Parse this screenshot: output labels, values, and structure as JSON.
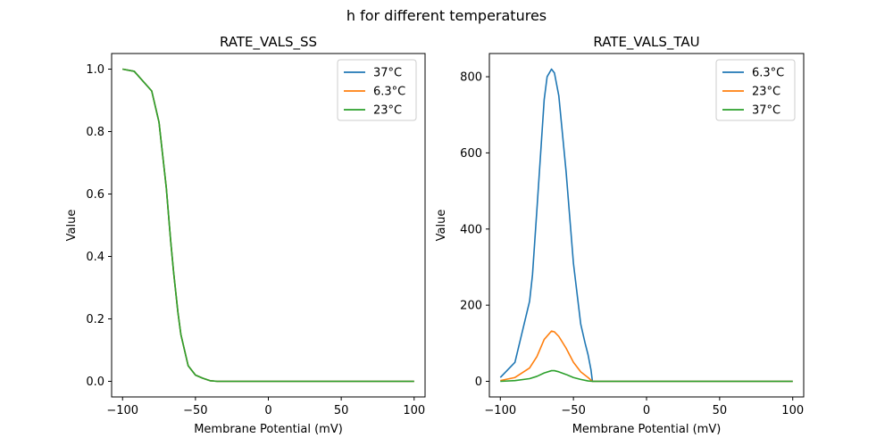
{
  "figure": {
    "suptitle": "h for different temperatures"
  },
  "colors": {
    "blue": "#1f77b4",
    "orange": "#ff7f0e",
    "green": "#2ca02c"
  },
  "chart_data": [
    {
      "type": "line",
      "title": "RATE_VALS_SS",
      "xlabel": "Membrane Potential (mV)",
      "ylabel": "Value",
      "xlim": [
        -107.5,
        107.5
      ],
      "ylim": [
        -0.05,
        1.05
      ],
      "xticks": [
        -100,
        -50,
        0,
        50,
        100
      ],
      "yticks": [
        0.0,
        0.2,
        0.4,
        0.6,
        0.8,
        1.0
      ],
      "ytick_labels": [
        "0.0",
        "0.2",
        "0.4",
        "0.6",
        "0.8",
        "1.0"
      ],
      "grid": false,
      "legend": "top-right",
      "series": [
        {
          "name": "37°C",
          "color": "blue",
          "x": [
            -100,
            -92,
            -80,
            -75,
            -70,
            -67,
            -65,
            -62,
            -60,
            -55,
            -50,
            -45,
            -40,
            -35,
            0,
            100
          ],
          "y": [
            1.0,
            0.993,
            0.93,
            0.83,
            0.62,
            0.45,
            0.35,
            0.22,
            0.15,
            0.05,
            0.02,
            0.01,
            0.002,
            0.0,
            0.0,
            0.0
          ]
        },
        {
          "name": "6.3°C",
          "color": "orange",
          "x": [
            -100,
            -92,
            -80,
            -75,
            -70,
            -67,
            -65,
            -62,
            -60,
            -55,
            -50,
            -45,
            -40,
            -35,
            0,
            100
          ],
          "y": [
            1.0,
            0.993,
            0.93,
            0.83,
            0.62,
            0.45,
            0.35,
            0.22,
            0.15,
            0.05,
            0.02,
            0.01,
            0.002,
            0.0,
            0.0,
            0.0
          ]
        },
        {
          "name": "23°C",
          "color": "green",
          "x": [
            -100,
            -92,
            -80,
            -75,
            -70,
            -67,
            -65,
            -62,
            -60,
            -55,
            -50,
            -45,
            -40,
            -35,
            0,
            100
          ],
          "y": [
            1.0,
            0.993,
            0.93,
            0.83,
            0.62,
            0.45,
            0.35,
            0.22,
            0.15,
            0.05,
            0.02,
            0.01,
            0.002,
            0.0,
            0.0,
            0.0
          ]
        }
      ]
    },
    {
      "type": "line",
      "title": "RATE_VALS_TAU",
      "xlabel": "Membrane Potential (mV)",
      "ylabel": "Value",
      "xlim": [
        -107.5,
        107.5
      ],
      "ylim": [
        -41,
        861
      ],
      "xticks": [
        -100,
        -50,
        0,
        50,
        100
      ],
      "yticks": [
        0,
        200,
        400,
        600,
        800
      ],
      "ytick_labels": [
        "0",
        "200",
        "400",
        "600",
        "800"
      ],
      "grid": false,
      "legend": "top-right",
      "series": [
        {
          "name": "6.3°C",
          "color": "blue",
          "x": [
            -100,
            -90,
            -80,
            -78,
            -75,
            -70,
            -68,
            -65,
            -63,
            -60,
            -55,
            -50,
            -45,
            -42,
            -40,
            -38,
            -37,
            0,
            100
          ],
          "y": [
            10,
            50,
            210,
            280,
            450,
            740,
            800,
            820,
            810,
            750,
            550,
            310,
            150,
            100,
            70,
            30,
            0,
            0,
            0
          ]
        },
        {
          "name": "23°C",
          "color": "orange",
          "x": [
            -100,
            -90,
            -80,
            -75,
            -70,
            -65,
            -63,
            -60,
            -55,
            -50,
            -45,
            -40,
            -37,
            0,
            100
          ],
          "y": [
            2,
            10,
            35,
            65,
            110,
            132,
            130,
            118,
            87,
            50,
            25,
            10,
            0,
            0,
            0
          ]
        },
        {
          "name": "37°C",
          "color": "green",
          "x": [
            -100,
            -90,
            -80,
            -75,
            -70,
            -65,
            -63,
            -60,
            -55,
            -50,
            -45,
            -40,
            -37,
            0,
            100
          ],
          "y": [
            0,
            2,
            7,
            13,
            22,
            28,
            28,
            25,
            18,
            10,
            5,
            1,
            0,
            0,
            0
          ]
        }
      ]
    }
  ]
}
